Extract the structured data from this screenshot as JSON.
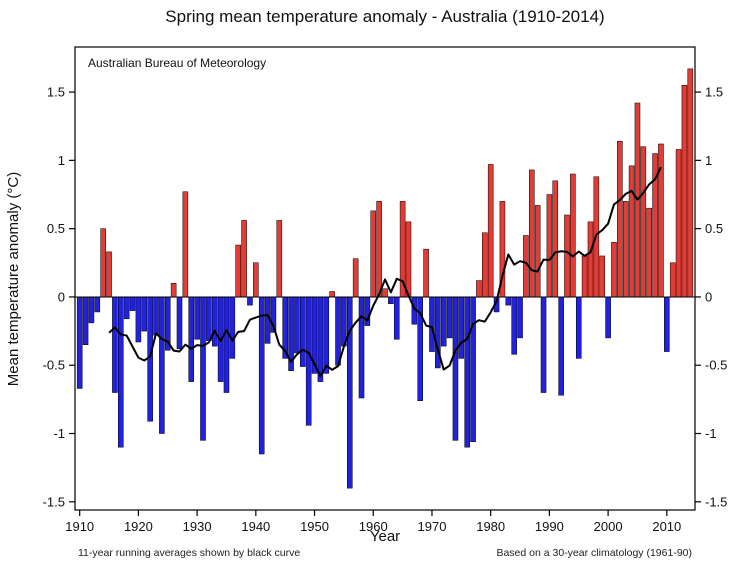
{
  "title": "Spring mean temperature anomaly - Australia (1910-2014)",
  "watermark": "Australian Bureau of Meteorology",
  "footnote_left": "11-year running averages shown by black curve",
  "footnote_right": "Based on a 30-year climatology (1961-90)",
  "colors": {
    "positive_bar": "#e13c35",
    "negative_bar": "#2222dd",
    "curve": "#000000",
    "axis": "#000000"
  },
  "chart_data": {
    "type": "bar",
    "title": "Spring mean temperature anomaly - Australia (1910-2014)",
    "xlabel": "Year",
    "ylabel": "Mean temperature anomaly (°C)",
    "year_start": 1910,
    "year_end": 2014,
    "values": [
      -0.67,
      -0.35,
      -0.19,
      -0.11,
      0.5,
      0.33,
      -0.7,
      -1.1,
      -0.16,
      -0.1,
      -0.33,
      -0.25,
      -0.91,
      -0.28,
      -1.0,
      -0.39,
      0.1,
      -0.38,
      0.77,
      -0.62,
      -0.31,
      -1.05,
      -0.32,
      -0.36,
      -0.62,
      -0.7,
      -0.45,
      0.38,
      0.56,
      -0.06,
      0.25,
      -1.15,
      -0.34,
      -0.26,
      0.56,
      -0.45,
      -0.54,
      -0.41,
      -0.51,
      -0.94,
      -0.56,
      -0.62,
      -0.56,
      0.04,
      -0.5,
      -0.36,
      -1.4,
      0.28,
      -0.74,
      -0.21,
      0.63,
      0.7,
      0.06,
      -0.05,
      -0.31,
      0.7,
      0.55,
      -0.2,
      -0.76,
      0.35,
      -0.4,
      -0.52,
      -0.36,
      -0.3,
      -1.05,
      -0.45,
      -1.1,
      -1.06,
      0.12,
      0.47,
      0.97,
      -0.11,
      0.7,
      -0.06,
      -0.42,
      -0.3,
      0.45,
      0.93,
      0.67,
      -0.7,
      0.75,
      0.85,
      -0.72,
      0.6,
      0.9,
      -0.45,
      0.3,
      0.55,
      0.88,
      0.3,
      -0.3,
      0.4,
      1.14,
      0.7,
      0.96,
      1.42,
      1.1,
      0.65,
      1.05,
      1.12,
      -0.4,
      0.25,
      1.08,
      1.55,
      1.67
    ],
    "running_average_window": 11,
    "x_ticks": [
      1910,
      1920,
      1930,
      1940,
      1950,
      1960,
      1970,
      1980,
      1990,
      2000,
      2010
    ],
    "y_ticks": [
      -1.5,
      -1,
      -0.5,
      0,
      0.5,
      1,
      1.5
    ],
    "xlim": [
      1909.2,
      2014.8
    ],
    "ylim": [
      -1.56,
      1.83
    ],
    "grid": false,
    "legend": "none"
  }
}
